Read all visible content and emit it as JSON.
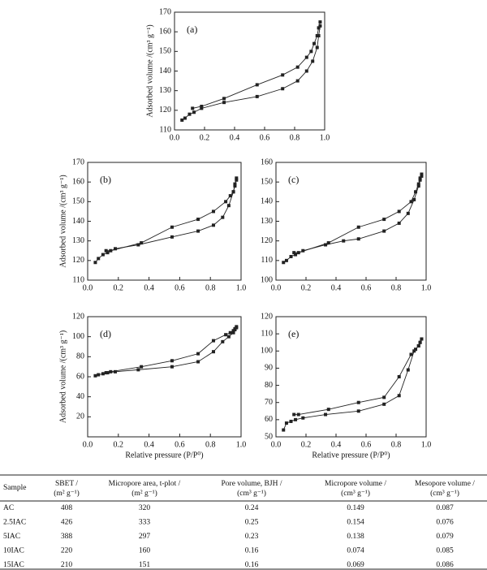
{
  "chart_data": [
    {
      "type": "line",
      "panel_label": "(a)",
      "ylabel": "Adsorbed volume /(cm³ g⁻¹)",
      "xlim": [
        0,
        1
      ],
      "xticks": [
        {
          "value": 0,
          "label": "0.0"
        },
        0.2,
        0.4,
        0.6,
        0.8,
        {
          "value": 1,
          "label": "1.0"
        }
      ],
      "ylim": [
        110,
        170
      ],
      "yticks": [
        110,
        120,
        130,
        140,
        150,
        160,
        170
      ],
      "series": [
        {
          "color": "#222",
          "x": [
            0.05,
            0.07,
            0.1,
            0.13,
            0.18,
            0.33,
            0.55,
            0.72,
            0.82,
            0.88,
            0.92,
            0.95,
            0.96,
            0.97
          ],
          "values": [
            115,
            116,
            118,
            119,
            121,
            124,
            127,
            131,
            135,
            140,
            145,
            152,
            158,
            163
          ]
        },
        {
          "color": "#222",
          "x": [
            0.97,
            0.96,
            0.95,
            0.93,
            0.91,
            0.88,
            0.82,
            0.72,
            0.55,
            0.33,
            0.18,
            0.12
          ],
          "values": [
            165,
            162,
            158,
            154,
            150,
            147,
            142,
            138,
            133,
            126,
            122,
            121
          ]
        }
      ]
    },
    {
      "type": "line",
      "panel_label": "(b)",
      "ylabel": "Adsorbed volume /(cm³ g⁻¹)",
      "xlim": [
        0,
        1
      ],
      "xticks": [
        {
          "value": 0,
          "label": "0.0"
        },
        0.2,
        0.4,
        0.6,
        0.8,
        {
          "value": 1,
          "label": "1.0"
        }
      ],
      "ylim": [
        110,
        170
      ],
      "yticks": [
        110,
        120,
        130,
        140,
        150,
        160,
        170
      ],
      "series": [
        {
          "color": "#222",
          "x": [
            0.05,
            0.07,
            0.1,
            0.13,
            0.18,
            0.33,
            0.55,
            0.72,
            0.82,
            0.88,
            0.92,
            0.95,
            0.96,
            0.97
          ],
          "values": [
            119,
            121,
            123,
            124,
            126,
            128,
            132,
            135,
            138,
            142,
            148,
            155,
            159,
            161
          ]
        },
        {
          "color": "#222",
          "x": [
            0.97,
            0.96,
            0.95,
            0.93,
            0.9,
            0.82,
            0.72,
            0.55,
            0.35,
            0.15,
            0.12
          ],
          "values": [
            162,
            158,
            155,
            153,
            150,
            145,
            141,
            137,
            129,
            125,
            125
          ]
        }
      ]
    },
    {
      "type": "line",
      "panel_label": "(c)",
      "xlim": [
        0,
        1
      ],
      "xticks": [
        {
          "value": 0,
          "label": "0.0"
        },
        0.2,
        0.4,
        0.6,
        0.8,
        {
          "value": 1,
          "label": "1.0"
        }
      ],
      "ylim": [
        100,
        160
      ],
      "yticks": [
        100,
        110,
        120,
        130,
        140,
        150,
        160
      ],
      "series": [
        {
          "color": "#222",
          "x": [
            0.05,
            0.07,
            0.1,
            0.13,
            0.18,
            0.33,
            0.45,
            0.55,
            0.72,
            0.82,
            0.88,
            0.92,
            0.95,
            0.96,
            0.97
          ],
          "values": [
            109,
            110,
            112,
            113,
            115,
            118,
            120,
            121,
            125,
            129,
            134,
            141,
            148,
            151,
            153
          ]
        },
        {
          "color": "#222",
          "x": [
            0.97,
            0.96,
            0.95,
            0.93,
            0.9,
            0.82,
            0.72,
            0.55,
            0.35,
            0.15,
            0.12
          ],
          "values": [
            154,
            152,
            149,
            145,
            140,
            135,
            131,
            127,
            119,
            114,
            114
          ]
        }
      ]
    },
    {
      "type": "line",
      "panel_label": "(d)",
      "ylabel": "Adsorbed volume /(cm³ g⁻¹)",
      "xlabel": "Relative pressure (P/P⁰)",
      "xlim": [
        0,
        1
      ],
      "xticks": [
        {
          "value": 0,
          "label": "0.0"
        },
        0.2,
        0.4,
        0.6,
        0.8,
        {
          "value": 1,
          "label": "1.0"
        }
      ],
      "ylim": [
        0,
        120
      ],
      "yticks": [
        20,
        40,
        60,
        80,
        100,
        120
      ],
      "series": [
        {
          "color": "#222",
          "x": [
            0.05,
            0.07,
            0.1,
            0.13,
            0.18,
            0.33,
            0.55,
            0.72,
            0.82,
            0.88,
            0.92,
            0.95,
            0.96,
            0.97
          ],
          "values": [
            61,
            62,
            63,
            64,
            65,
            67,
            70,
            75,
            85,
            95,
            100,
            104,
            107,
            109
          ]
        },
        {
          "color": "#222",
          "x": [
            0.97,
            0.96,
            0.95,
            0.93,
            0.9,
            0.82,
            0.72,
            0.55,
            0.35,
            0.15,
            0.12
          ],
          "values": [
            110,
            108,
            106,
            104,
            102,
            96,
            83,
            76,
            70,
            65,
            64
          ]
        }
      ]
    },
    {
      "type": "line",
      "panel_label": "(e)",
      "xlabel": "Relative pressure (P/P⁰)",
      "xlim": [
        0,
        1
      ],
      "xticks": [
        {
          "value": 0,
          "label": "0.0"
        },
        0.2,
        0.4,
        0.6,
        0.8,
        {
          "value": 1,
          "label": "1.0"
        }
      ],
      "ylim": [
        50,
        120
      ],
      "yticks": [
        50,
        60,
        70,
        80,
        90,
        100,
        110,
        120
      ],
      "series": [
        {
          "color": "#222",
          "x": [
            0.05,
            0.07,
            0.1,
            0.13,
            0.18,
            0.33,
            0.55,
            0.72,
            0.82,
            0.88,
            0.92,
            0.95,
            0.96,
            0.97
          ],
          "values": [
            54,
            58,
            59,
            60,
            61,
            63,
            65,
            69,
            74,
            89,
            100,
            103,
            105,
            107
          ]
        },
        {
          "color": "#222",
          "x": [
            0.97,
            0.96,
            0.95,
            0.93,
            0.9,
            0.82,
            0.72,
            0.55,
            0.35,
            0.15,
            0.12
          ],
          "values": [
            107,
            105,
            103,
            101,
            98,
            85,
            73,
            70,
            66,
            63,
            63
          ]
        }
      ]
    }
  ],
  "table": {
    "header": [
      [
        "Sample"
      ],
      [
        "SBET /",
        "(m² g⁻¹)"
      ],
      [
        "Micropore area, t-plot /",
        "(m² g⁻¹)"
      ],
      [
        "Pore volume, BJH /",
        "(cm³ g⁻¹)"
      ],
      [
        "Micropore volume /",
        "(cm³ g⁻¹)"
      ],
      [
        "Mesopore volume /",
        "(cm³ g⁻¹)"
      ]
    ],
    "rows": [
      [
        "AC",
        408,
        320,
        0.24,
        0.149,
        0.087
      ],
      [
        "2.5IAC",
        426,
        333,
        0.25,
        0.154,
        0.076
      ],
      [
        "5IAC",
        388,
        297,
        0.23,
        0.138,
        0.079
      ],
      [
        "10IAC",
        220,
        160,
        0.16,
        0.074,
        0.085
      ],
      [
        "15IAC",
        210,
        151,
        0.16,
        0.069,
        0.086
      ]
    ]
  }
}
